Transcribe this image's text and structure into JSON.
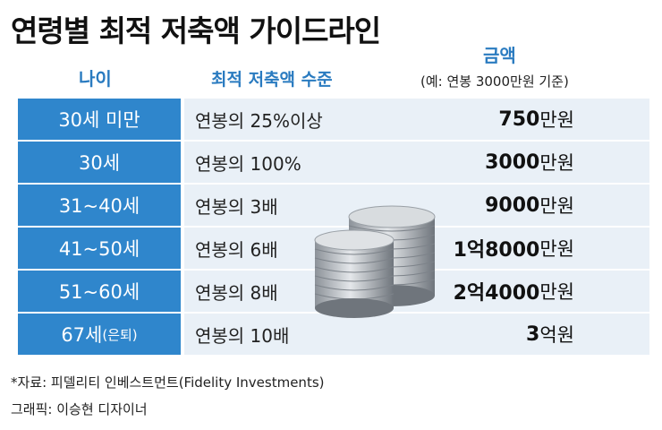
{
  "title": "연령별 최적 저축액 가이드라인",
  "headers": {
    "age": "나이",
    "level": "최적 저축액 수준",
    "amount": "금액",
    "amount_sub": "(예: 연봉 3000만원 기준)"
  },
  "rows": [
    {
      "age": "30세 미만",
      "age_suffix": "",
      "level": "연봉의 25%이상",
      "amount_num": "750",
      "amount_unit": "만원"
    },
    {
      "age": "30세",
      "age_suffix": "",
      "level": "연봉의 100%",
      "amount_num": "3000",
      "amount_unit": "만원"
    },
    {
      "age": "31~40세",
      "age_suffix": "",
      "level": "연봉의 3배",
      "amount_num": "9000",
      "amount_unit": "만원"
    },
    {
      "age": "41~50세",
      "age_suffix": "",
      "level": "연봉의 6배",
      "amount_num": "1억8000",
      "amount_unit": "만원"
    },
    {
      "age": "51~60세",
      "age_suffix": "",
      "level": "연봉의 8배",
      "amount_num": "2억4000",
      "amount_unit": "만원"
    },
    {
      "age": "67세",
      "age_suffix": "(은퇴)",
      "level": "연봉의 10배",
      "amount_num": "3",
      "amount_unit": "억원"
    }
  ],
  "source_note": "*자료: 피델리티 인베스트먼트(Fidelity Investments)",
  "credit_note": "그래픽: 이승현 디자이너",
  "colors": {
    "accent": "#2f86cc",
    "header_text": "#2a7bc0",
    "row_bg": "#e9f0f7"
  },
  "decor": {
    "image": "coin-stacks-icon"
  }
}
